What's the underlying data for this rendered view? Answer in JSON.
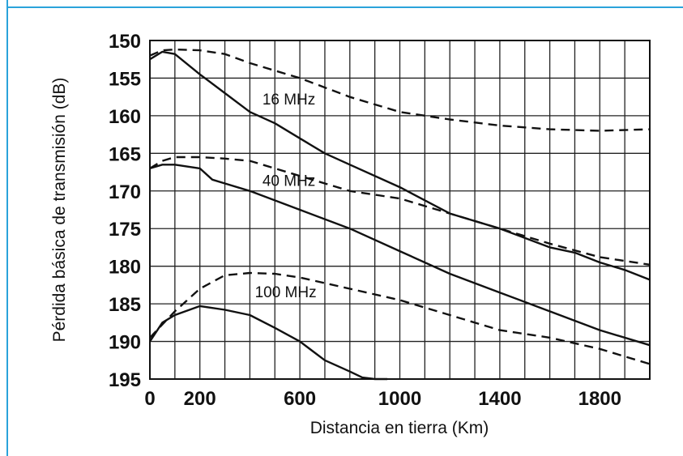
{
  "chart_data": {
    "type": "line",
    "xlabel": "Distancia en tierra (Km)",
    "ylabel": "Pérdida básica de transmisión (dB)",
    "xlim": [
      0,
      2000
    ],
    "ylim": [
      150,
      195
    ],
    "y_inverted": true,
    "grid": true,
    "xticks": [
      "0",
      "200",
      "600",
      "1000",
      "1400",
      "1800"
    ],
    "xtick_values": [
      0,
      200,
      600,
      1000,
      1400,
      1800
    ],
    "yticks": [
      "150",
      "155",
      "160",
      "165",
      "170",
      "175",
      "180",
      "185",
      "190",
      "195"
    ],
    "ytick_values": [
      150,
      155,
      160,
      165,
      170,
      175,
      180,
      185,
      190,
      195
    ],
    "frame_color": "#2aa3db",
    "line_color": "#111111",
    "series": [
      {
        "label": "16 MHz",
        "style": "solid",
        "x": [
          0,
          50,
          100,
          200,
          300,
          400,
          500,
          600,
          700,
          800,
          1000,
          1200,
          1400,
          1600,
          1700,
          1800,
          1900,
          2000
        ],
        "y": [
          152.5,
          151.5,
          151.8,
          154.5,
          157.0,
          159.5,
          161.0,
          163.0,
          165.0,
          166.5,
          169.5,
          173.0,
          175.0,
          177.5,
          178.2,
          179.5,
          180.5,
          181.8
        ]
      },
      {
        "label": "16 MHz",
        "style": "dashed",
        "x": [
          0,
          50,
          100,
          200,
          300,
          400,
          500,
          600,
          800,
          1000,
          1200,
          1400,
          1600,
          1800,
          2000
        ],
        "y": [
          152.0,
          151.3,
          151.2,
          151.3,
          151.8,
          153.0,
          154.0,
          155.0,
          157.5,
          159.5,
          160.5,
          161.3,
          161.8,
          162.0,
          161.8
        ]
      },
      {
        "label": "40 MHz",
        "style": "solid",
        "x": [
          0,
          50,
          100,
          200,
          250,
          300,
          400,
          600,
          800,
          1000,
          1200,
          1400,
          1600,
          1800,
          2000
        ],
        "y": [
          167.0,
          166.5,
          166.5,
          167.0,
          168.5,
          169.0,
          170.0,
          172.5,
          175.0,
          178.0,
          181.0,
          183.5,
          186.0,
          188.5,
          190.5
        ]
      },
      {
        "label": "40 MHz",
        "style": "dashed",
        "x": [
          0,
          50,
          100,
          200,
          300,
          400,
          500,
          600,
          800,
          1000,
          1200,
          1400,
          1600,
          1800,
          2000
        ],
        "y": [
          167.0,
          166.0,
          165.5,
          165.5,
          165.7,
          166.0,
          167.0,
          168.0,
          170.0,
          171.0,
          173.0,
          175.0,
          177.0,
          178.8,
          179.8
        ]
      },
      {
        "label": "100 MHz",
        "style": "solid",
        "x": [
          0,
          50,
          100,
          200,
          300,
          400,
          500,
          600,
          700,
          800,
          850,
          900,
          950
        ],
        "y": [
          190.0,
          187.5,
          186.5,
          185.3,
          185.8,
          186.5,
          188.2,
          190.0,
          192.5,
          194.0,
          194.8,
          195.0,
          195.0
        ]
      },
      {
        "label": "100 MHz",
        "style": "dashed",
        "x": [
          0,
          100,
          200,
          300,
          400,
          500,
          600,
          800,
          1000,
          1200,
          1400,
          1600,
          1800,
          2000
        ],
        "y": [
          189.5,
          186.0,
          183.0,
          181.2,
          180.9,
          181.0,
          181.5,
          183.0,
          184.5,
          186.5,
          188.5,
          189.5,
          191.0,
          193.0
        ]
      }
    ],
    "annotations": [
      {
        "text": "16 MHz",
        "x": 450,
        "y": 158.5
      },
      {
        "text": "40 MHz",
        "x": 450,
        "y": 169.3
      },
      {
        "text": "100 MHz",
        "x": 420,
        "y": 184.1
      }
    ]
  }
}
